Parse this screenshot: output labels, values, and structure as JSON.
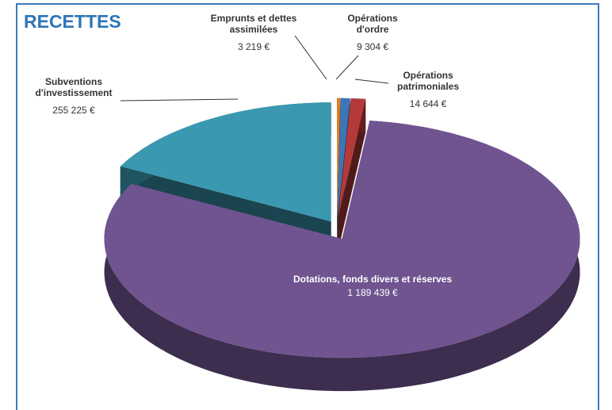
{
  "chart_data": {
    "type": "pie",
    "title": "RECETTES",
    "categories": [
      "Emprunts et dettes assimilées",
      "Opérations d'ordre",
      "Opérations patrimoniales",
      "Dotations, fonds divers et réserves",
      "Subventions d'investissement"
    ],
    "values": [
      3219,
      9304,
      14644,
      1189439,
      255225
    ],
    "value_labels": [
      "3 219 €",
      "9 304 €",
      "14 644 €",
      "1 189 439 €",
      "255 225 €"
    ],
    "colors": [
      "#e07b20",
      "#3a76b8",
      "#b5393a",
      "#6f5490",
      "#3a98b0"
    ]
  }
}
